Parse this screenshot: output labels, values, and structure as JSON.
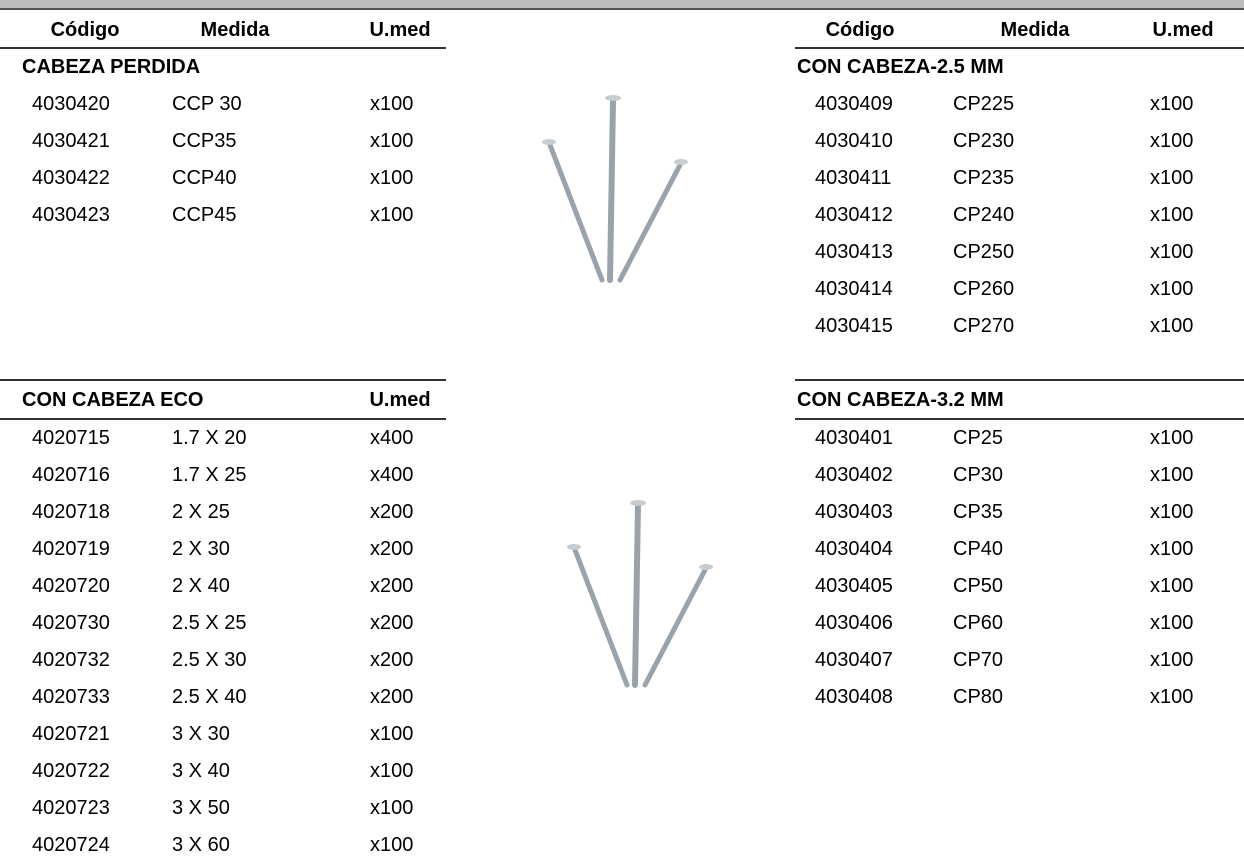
{
  "left_top": {
    "headers": [
      "Código",
      "Medida",
      "U.med"
    ],
    "section": "CABEZA PERDIDA",
    "rows": [
      [
        "4030420",
        "CCP 30",
        "x100"
      ],
      [
        "4030421",
        "CCP35",
        "x100"
      ],
      [
        "4030422",
        "CCP40",
        "x100"
      ],
      [
        "4030423",
        "CCP45",
        "x100"
      ]
    ]
  },
  "right_top": {
    "headers": [
      "Código",
      "Medida",
      "U.med"
    ],
    "section": "CON CABEZA-2.5 MM",
    "rows": [
      [
        "4030409",
        "CP225",
        "x100"
      ],
      [
        "4030410",
        "CP230",
        "x100"
      ],
      [
        "4030411",
        "CP235",
        "x100"
      ],
      [
        "4030412",
        "CP240",
        "x100"
      ],
      [
        "4030413",
        "CP250",
        "x100"
      ],
      [
        "4030414",
        "CP260",
        "x100"
      ],
      [
        "4030415",
        "CP270",
        "x100"
      ]
    ]
  },
  "left_bottom": {
    "headers": [
      "CON CABEZA ECO",
      "U.med"
    ],
    "rows": [
      [
        "4020715",
        "1.7 X 20",
        "x400"
      ],
      [
        "4020716",
        "1.7 X 25",
        "x400"
      ],
      [
        "4020718",
        "2 X 25",
        "x200"
      ],
      [
        "4020719",
        "2 X 30",
        "x200"
      ],
      [
        "4020720",
        "2 X 40",
        "x200"
      ],
      [
        "4020730",
        "2.5 X 25",
        "x200"
      ],
      [
        "4020732",
        "2.5 X 30",
        "x200"
      ],
      [
        "4020733",
        "2.5 X 40",
        "x200"
      ],
      [
        "4020721",
        "3 X 30",
        "x100"
      ],
      [
        "4020722",
        "3 X 40",
        "x100"
      ],
      [
        "4020723",
        "3 X 50",
        "x100"
      ],
      [
        "4020724",
        "3 X 60",
        "x100"
      ]
    ]
  },
  "right_bottom": {
    "section": "CON CABEZA-3.2 MM",
    "rows": [
      [
        "4030401",
        "CP25",
        "x100"
      ],
      [
        "4030402",
        "CP30",
        "x100"
      ],
      [
        "4030403",
        "CP35",
        "x100"
      ],
      [
        "4030404",
        "CP40",
        "x100"
      ],
      [
        "4030405",
        "CP50",
        "x100"
      ],
      [
        "4030406",
        "CP60",
        "x100"
      ],
      [
        "4030407",
        "CP70",
        "x100"
      ],
      [
        "4030408",
        "CP80",
        "x100"
      ]
    ]
  }
}
